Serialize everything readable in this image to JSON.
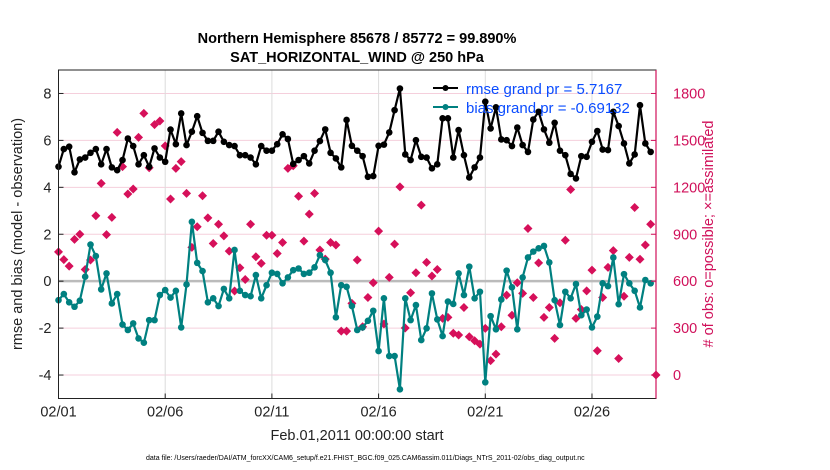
{
  "chart_data": {
    "type": "line",
    "title": [
      "Northern Hemisphere 85678 / 85772 = 99.890%",
      "SAT_HORIZONTAL_WIND @ 250 hPa"
    ],
    "xlabel": "Feb.01,2011 00:00:00 start",
    "ylabel": "rmse and bias (model - observation)",
    "ylabel_right": "# of obs: o=possible; ×=assimilated",
    "x_unit": "days since Feb.01,2011 00:00, 6-hourly",
    "xlim": [
      0,
      28
    ],
    "ylim": [
      -5,
      9
    ],
    "ylim_right": [
      -150,
      1950
    ],
    "xticks": [
      0,
      5,
      10,
      15,
      20,
      25
    ],
    "xtick_labels": [
      "02/01",
      "02/06",
      "02/11",
      "02/16",
      "02/21",
      "02/26"
    ],
    "yticks": [
      -4,
      -2,
      0,
      2,
      4,
      6,
      8
    ],
    "ytick_labels": [
      "-4",
      "-2",
      "0",
      "2",
      "4",
      "6",
      "8"
    ],
    "yticks_right": [
      0,
      300,
      600,
      900,
      1200,
      1500,
      1800
    ],
    "ytick_labels_right": [
      "0",
      "300",
      "600",
      "900",
      "1200",
      "1500",
      "1800"
    ],
    "grid": true,
    "legend_position": "top-right",
    "dt_days": 0.25,
    "series": [
      {
        "name": "rmse",
        "legend": "rmse grand pr = 5.7167",
        "color": "#000000",
        "axis": "left",
        "values": [
          4.88,
          5.63,
          5.73,
          4.64,
          5.19,
          5.27,
          5.47,
          5.63,
          4.98,
          5.63,
          4.85,
          4.73,
          5.16,
          6.08,
          5.76,
          4.98,
          5.37,
          4.88,
          5.66,
          5.27,
          5.09,
          6.46,
          5.84,
          7.15,
          5.8,
          6.37,
          7.03,
          6.32,
          5.98,
          5.98,
          6.37,
          5.94,
          5.8,
          5.76,
          5.37,
          5.37,
          5.27,
          4.98,
          5.76,
          5.56,
          5.56,
          5.84,
          6.26,
          6.06,
          5.0,
          5.16,
          5.33,
          5.02,
          5.56,
          5.97,
          6.47,
          5.47,
          5.23,
          4.85,
          6.87,
          5.77,
          5.56,
          5.33,
          4.45,
          4.48,
          5.77,
          5.82,
          6.34,
          7.29,
          8.21,
          5.4,
          5.16,
          6.01,
          5.3,
          5.27,
          4.81,
          4.98,
          6.94,
          6.94,
          5.27,
          6.44,
          5.37,
          4.42,
          4.85,
          5.27,
          7.65,
          6.51,
          7.41,
          6.04,
          6.01,
          5.76,
          6.55,
          5.8,
          5.51,
          6.89,
          7.22,
          6.47,
          5.9,
          6.75,
          5.56,
          5.37,
          4.57,
          4.38,
          5.33,
          5.3,
          5.94,
          6.4,
          5.61,
          5.59,
          7.22,
          6.61,
          5.87,
          5.02,
          5.4,
          7.5,
          5.87,
          5.51
        ]
      },
      {
        "name": "bias",
        "legend": "bias grand pr = -0.69132",
        "color": "#008080",
        "axis": "left",
        "values": [
          -0.81,
          -0.55,
          -0.9,
          -1.09,
          -0.83,
          0.19,
          1.56,
          1.07,
          -0.35,
          0.33,
          -0.95,
          -0.55,
          -1.85,
          -2.08,
          -1.8,
          -2.44,
          -2.62,
          -1.66,
          -1.66,
          -0.59,
          -0.38,
          -0.7,
          -0.41,
          -1.97,
          -0.14,
          2.53,
          0.78,
          0.43,
          -0.9,
          -0.73,
          -1.06,
          -0.33,
          -0.73,
          1.33,
          -0.41,
          -0.59,
          -0.64,
          0.26,
          -0.73,
          -0.17,
          0.36,
          0.31,
          -0.09,
          0.16,
          0.47,
          0.54,
          0.31,
          0.36,
          0.59,
          1.11,
          0.9,
          0.36,
          -1.54,
          -0.17,
          -0.24,
          -1.06,
          -2.08,
          -1.97,
          -1.69,
          -1.26,
          -2.98,
          -0.73,
          -3.19,
          -3.19,
          -4.61,
          -0.73,
          -1.66,
          -1.02,
          -2.51,
          -2.01,
          -0.52,
          -1.63,
          -2.34,
          -0.87,
          -0.97,
          0.33,
          -0.59,
          0.62,
          -0.73,
          -0.45,
          -4.31,
          -1.49,
          -2.05,
          -0.78,
          0.45,
          -0.26,
          -2.05,
          0.16,
          1.01,
          1.26,
          1.4,
          1.5,
          0.8,
          -0.81,
          -1.87,
          -0.45,
          -0.73,
          -0.12,
          -1.45,
          -1.21,
          -1.97,
          -1.51,
          -0.09,
          -0.21,
          1.01,
          -0.98,
          0.3,
          -0.09,
          -0.41,
          -1.12,
          0.05,
          -0.09
        ]
      },
      {
        "name": "obs_count",
        "color": "#d6105a",
        "axis": "right",
        "marker": "diamond",
        "values": [
          787,
          738,
          696,
          867,
          900,
          675,
          735,
          1018,
          1225,
          898,
          1008,
          1551,
          1332,
          1157,
          1189,
          1519,
          1673,
          1325,
          1601,
          1624,
          1465,
          1125,
          1321,
          1364,
          1161,
          816,
          948,
          1146,
          1005,
          841,
          964,
          890,
          792,
          537,
          686,
          611,
          964,
          756,
          714,
          894,
          894,
          777,
          847,
          1321,
          1338,
          1143,
          856,
          1029,
          1161,
          799,
          741,
          847,
          831,
          281,
          281,
          458,
          735,
          309,
          496,
          590,
          920,
          326,
          624,
          837,
          1203,
          301,
          526,
          654,
          1086,
          720,
          633,
          675,
          362,
          369,
          267,
          256,
          432,
          245,
          219,
          198,
          298,
          92,
          134,
          309,
          511,
          382,
          590,
          522,
          937,
          496,
          717,
          369,
          432,
          234,
          462,
          862,
          1186,
          362,
          419,
          538,
          671,
          155,
          496,
          688,
          795,
          106,
          504,
          752,
          1071,
          740,
          831,
          964,
          0
        ]
      }
    ]
  },
  "footer": "data file: /Users/raeder/DAI/ATM_forcXX/CAM6_setup/f.e21.FHIST_BGC.f09_025.CAM6assim.011/Diags_NTrS_2011-02/obs_diag_output.nc",
  "colors": {
    "rmse": "#000000",
    "bias": "#008080",
    "obs": "#d6105a",
    "legend_text": "#0a4cff",
    "right_axis": "#d0105a"
  }
}
